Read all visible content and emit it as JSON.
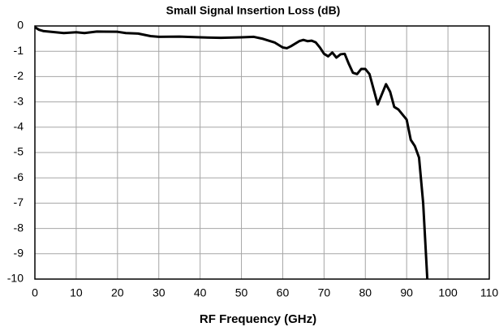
{
  "chart_data": {
    "type": "line",
    "title": "Small Signal Insertion Loss (dB)",
    "x_label": "RF Frequency  (GHz)",
    "x": [
      0,
      1,
      2,
      5,
      7,
      10,
      12,
      15,
      20,
      22,
      25,
      28,
      30,
      35,
      40,
      45,
      50,
      53,
      55,
      58,
      60,
      61,
      62,
      64,
      65,
      66,
      67,
      68,
      69,
      70,
      71,
      72,
      73,
      74,
      75,
      76,
      77,
      78,
      79,
      80,
      81,
      82,
      83,
      84,
      85,
      86,
      87,
      88,
      89,
      90,
      91,
      92,
      93,
      94,
      95
    ],
    "series": [
      {
        "name": "Insertion Loss",
        "color": "#000000",
        "values": [
          -0.05,
          -0.15,
          -0.2,
          -0.25,
          -0.28,
          -0.25,
          -0.28,
          -0.22,
          -0.23,
          -0.28,
          -0.3,
          -0.4,
          -0.43,
          -0.42,
          -0.45,
          -0.47,
          -0.45,
          -0.43,
          -0.5,
          -0.65,
          -0.85,
          -0.88,
          -0.8,
          -0.6,
          -0.55,
          -0.6,
          -0.58,
          -0.65,
          -0.85,
          -1.1,
          -1.2,
          -1.05,
          -1.25,
          -1.12,
          -1.1,
          -1.5,
          -1.85,
          -1.9,
          -1.7,
          -1.7,
          -1.9,
          -2.5,
          -3.1,
          -2.7,
          -2.3,
          -2.6,
          -3.2,
          -3.3,
          -3.5,
          -3.7,
          -4.5,
          -4.75,
          -5.2,
          -7.0,
          -10
        ]
      }
    ],
    "xlim": [
      0,
      110
    ],
    "xticks": [
      0,
      10,
      20,
      30,
      40,
      50,
      60,
      70,
      80,
      90,
      100,
      110
    ],
    "ylim": [
      -10,
      0
    ],
    "yticks": [
      0,
      -1,
      -2,
      -3,
      -4,
      -5,
      -6,
      -7,
      -8,
      -9,
      -10
    ],
    "grid": true
  }
}
